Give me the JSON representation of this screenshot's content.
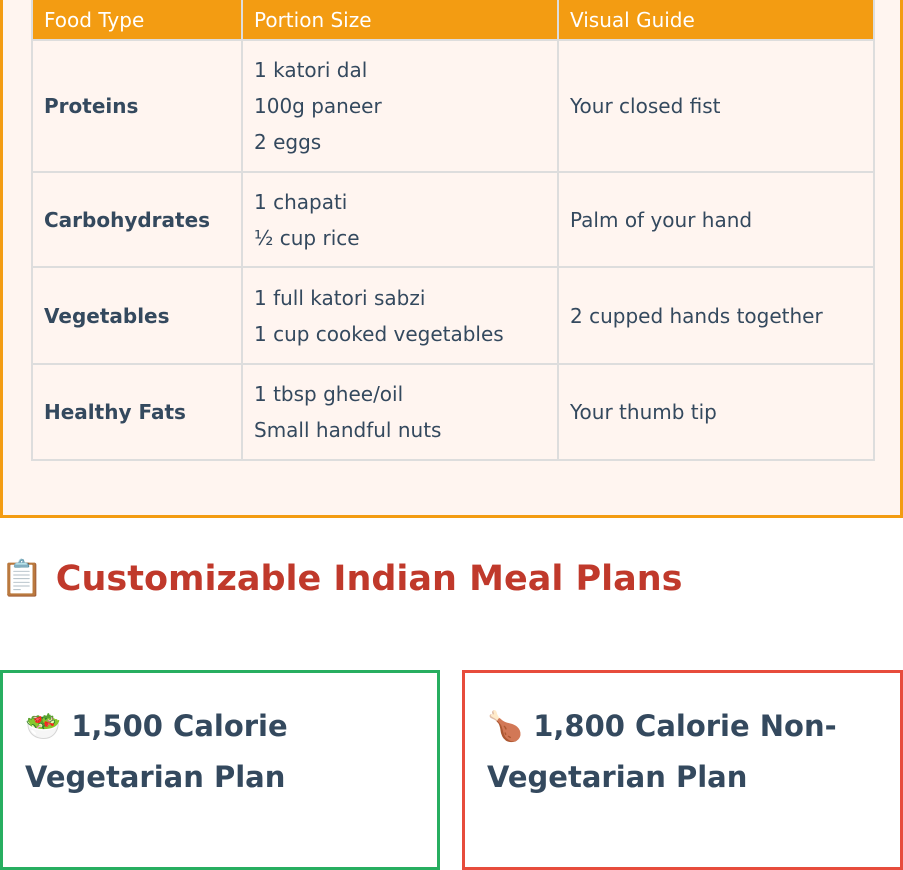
{
  "table": {
    "headers": [
      "Food Type",
      "Portion Size",
      "Visual Guide"
    ],
    "rows": [
      {
        "type": "Proteins",
        "portion": [
          "1 katori dal",
          "100g paneer",
          "2 eggs"
        ],
        "guide": "Your closed fist"
      },
      {
        "type": "Carbohydrates",
        "portion": [
          "1 chapati",
          "½ cup rice"
        ],
        "guide": "Palm of your hand"
      },
      {
        "type": "Vegetables",
        "portion": [
          "1 full katori sabzi",
          "1 cup cooked vegetables"
        ],
        "guide": "2 cupped hands together"
      },
      {
        "type": "Healthy Fats",
        "portion": [
          "1 tbsp ghee/oil",
          "Small handful nuts"
        ],
        "guide": "Your thumb tip"
      }
    ]
  },
  "section": {
    "icon": "clipboard-icon",
    "emoji": "📋",
    "title": "Customizable Indian Meal Plans"
  },
  "plans": [
    {
      "icon": "salad-icon",
      "emoji": "🥗",
      "title": "1,500 Calorie Vegetarian Plan",
      "color": "#27ae60"
    },
    {
      "icon": "poultry-leg-icon",
      "emoji": "🍗",
      "title": "1,800 Calorie Non-Vegetarian Plan",
      "color": "#e74c3c"
    }
  ]
}
